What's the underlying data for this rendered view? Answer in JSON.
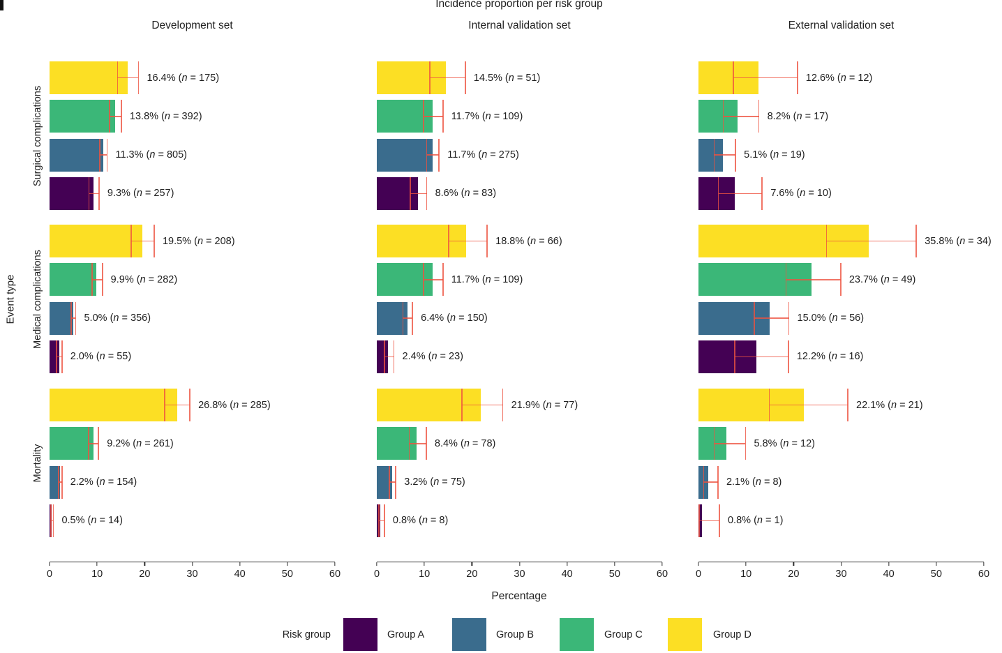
{
  "figure": {
    "title": "Incidence proportion per risk group",
    "xlabel": "Percentage",
    "ylabel": "Event type"
  },
  "legend": {
    "title": "Risk group",
    "items": [
      {
        "label": "Group A",
        "color": "#440154"
      },
      {
        "label": "Group B",
        "color": "#3A6C8D"
      },
      {
        "label": "Group C",
        "color": "#3BB778"
      },
      {
        "label": "Group D",
        "color": "#FCDF24"
      }
    ]
  },
  "chart_data": {
    "type": "bar",
    "orientation": "horizontal",
    "title": "Incidence proportion per risk group",
    "xlabel": "Percentage",
    "ylabel": "Event type",
    "xlim": [
      0,
      60
    ],
    "xticks": [
      0,
      10,
      20,
      30,
      40,
      50,
      60
    ],
    "columns": [
      "Development set",
      "Internal validation set",
      "External validation set"
    ],
    "rows": [
      "Surgical complications",
      "Medical complications",
      "Mortality"
    ],
    "group_order_top_to_bottom": [
      "Group D",
      "Group C",
      "Group B",
      "Group A"
    ],
    "colors": {
      "Group A": "#440154",
      "Group B": "#3A6C8D",
      "Group C": "#3BB778",
      "Group D": "#FCDF24"
    },
    "error_bar_color": "#ee5340",
    "panels": [
      {
        "row": "Surgical complications",
        "column": "Development set",
        "bars": [
          {
            "group": "Group D",
            "pct": "16.4",
            "n": 175,
            "ci": [
              14.3,
              18.7
            ],
            "label": "16.4% (n = 175)"
          },
          {
            "group": "Group C",
            "pct": "13.8",
            "n": 392,
            "ci": [
              12.6,
              15.1
            ],
            "label": "13.8% (n = 392)"
          },
          {
            "group": "Group B",
            "pct": "11.3",
            "n": 805,
            "ci": [
              10.6,
              12.1
            ],
            "label": "11.3% (n = 805)"
          },
          {
            "group": "Group A",
            "pct": "9.3",
            "n": 257,
            "ci": [
              8.3,
              10.4
            ],
            "label": "9.3% (n = 257)"
          }
        ]
      },
      {
        "row": "Surgical complications",
        "column": "Internal validation set",
        "bars": [
          {
            "group": "Group D",
            "pct": "14.5",
            "n": 51,
            "ci": [
              11.2,
              18.6
            ],
            "label": "14.5% (n = 51)"
          },
          {
            "group": "Group C",
            "pct": "11.7",
            "n": 109,
            "ci": [
              9.8,
              13.9
            ],
            "label": "11.7% (n = 109)"
          },
          {
            "group": "Group B",
            "pct": "11.7",
            "n": 275,
            "ci": [
              10.5,
              13.1
            ],
            "label": "11.7% (n = 275)"
          },
          {
            "group": "Group A",
            "pct": "8.6",
            "n": 83,
            "ci": [
              7.0,
              10.5
            ],
            "label": "8.6% (n = 83)"
          }
        ]
      },
      {
        "row": "Surgical complications",
        "column": "External validation set",
        "bars": [
          {
            "group": "Group D",
            "pct": "12.6",
            "n": 12,
            "ci": [
              7.3,
              20.8
            ],
            "label": "12.6% (n = 12)"
          },
          {
            "group": "Group C",
            "pct": "8.2",
            "n": 17,
            "ci": [
              5.2,
              12.7
            ],
            "label": "8.2% (n = 17)"
          },
          {
            "group": "Group B",
            "pct": "5.1",
            "n": 19,
            "ci": [
              3.3,
              7.8
            ],
            "label": "5.1% (n = 19)"
          },
          {
            "group": "Group A",
            "pct": "7.6",
            "n": 10,
            "ci": [
              4.2,
              13.4
            ],
            "label": "7.6% (n = 10)"
          }
        ]
      },
      {
        "row": "Medical complications",
        "column": "Development set",
        "bars": [
          {
            "group": "Group D",
            "pct": "19.5",
            "n": 208,
            "ci": [
              17.2,
              22.0
            ],
            "label": "19.5% (n = 208)"
          },
          {
            "group": "Group C",
            "pct": "9.9",
            "n": 282,
            "ci": [
              8.9,
              11.1
            ],
            "label": "9.9% (n = 282)"
          },
          {
            "group": "Group B",
            "pct": "5.0",
            "n": 356,
            "ci": [
              4.5,
              5.5
            ],
            "label": "5.0% (n = 356)"
          },
          {
            "group": "Group A",
            "pct": "2.0",
            "n": 55,
            "ci": [
              1.5,
              2.6
            ],
            "label": "2.0% (n = 55)"
          }
        ]
      },
      {
        "row": "Medical complications",
        "column": "Internal validation set",
        "bars": [
          {
            "group": "Group D",
            "pct": "18.8",
            "n": 66,
            "ci": [
              15.1,
              23.2
            ],
            "label": "18.8% (n = 66)"
          },
          {
            "group": "Group C",
            "pct": "11.7",
            "n": 109,
            "ci": [
              9.8,
              13.9
            ],
            "label": "11.7% (n = 109)"
          },
          {
            "group": "Group B",
            "pct": "6.4",
            "n": 150,
            "ci": [
              5.5,
              7.5
            ],
            "label": "6.4% (n = 150)"
          },
          {
            "group": "Group A",
            "pct": "2.4",
            "n": 23,
            "ci": [
              1.6,
              3.6
            ],
            "label": "2.4% (n = 23)"
          }
        ]
      },
      {
        "row": "Medical complications",
        "column": "External validation set",
        "bars": [
          {
            "group": "Group D",
            "pct": "35.8",
            "n": 34,
            "ci": [
              26.9,
              45.8
            ],
            "label": "35.8% (n = 34)"
          },
          {
            "group": "Group C",
            "pct": "23.7",
            "n": 49,
            "ci": [
              18.4,
              29.9
            ],
            "label": "23.7% (n = 49)"
          },
          {
            "group": "Group B",
            "pct": "15.0",
            "n": 56,
            "ci": [
              11.7,
              19.0
            ],
            "label": "15.0% (n = 56)"
          },
          {
            "group": "Group A",
            "pct": "12.2",
            "n": 16,
            "ci": [
              7.6,
              18.9
            ],
            "label": "12.2% (n = 16)"
          }
        ]
      },
      {
        "row": "Mortality",
        "column": "Development set",
        "bars": [
          {
            "group": "Group D",
            "pct": "26.8",
            "n": 285,
            "ci": [
              24.2,
              29.5
            ],
            "label": "26.8% (n = 285)"
          },
          {
            "group": "Group C",
            "pct": "9.2",
            "n": 261,
            "ci": [
              8.2,
              10.3
            ],
            "label": "9.2% (n = 261)"
          },
          {
            "group": "Group B",
            "pct": "2.2",
            "n": 154,
            "ci": [
              1.9,
              2.6
            ],
            "label": "2.2% (n = 154)"
          },
          {
            "group": "Group A",
            "pct": "0.5",
            "n": 14,
            "ci": [
              0.3,
              0.8
            ],
            "label": "0.5% (n = 14)"
          }
        ]
      },
      {
        "row": "Mortality",
        "column": "Internal validation set",
        "bars": [
          {
            "group": "Group D",
            "pct": "21.9",
            "n": 77,
            "ci": [
              17.9,
              26.5
            ],
            "label": "21.9% (n = 77)"
          },
          {
            "group": "Group C",
            "pct": "8.4",
            "n": 78,
            "ci": [
              6.8,
              10.4
            ],
            "label": "8.4% (n = 78)"
          },
          {
            "group": "Group B",
            "pct": "3.2",
            "n": 75,
            "ci": [
              2.6,
              4.0
            ],
            "label": "3.2% (n = 75)"
          },
          {
            "group": "Group A",
            "pct": "0.8",
            "n": 8,
            "ci": [
              0.4,
              1.6
            ],
            "label": "0.8% (n = 8)"
          }
        ]
      },
      {
        "row": "Mortality",
        "column": "External validation set",
        "bars": [
          {
            "group": "Group D",
            "pct": "22.1",
            "n": 21,
            "ci": [
              14.9,
              31.4
            ],
            "label": "22.1% (n = 21)"
          },
          {
            "group": "Group C",
            "pct": "5.8",
            "n": 12,
            "ci": [
              3.3,
              9.9
            ],
            "label": "5.8% (n = 12)"
          },
          {
            "group": "Group B",
            "pct": "2.1",
            "n": 8,
            "ci": [
              1.1,
              4.1
            ],
            "label": "2.1% (n = 8)"
          },
          {
            "group": "Group A",
            "pct": "0.8",
            "n": 1,
            "ci": [
              0.1,
              4.4
            ],
            "label": "0.8% (n = 1)"
          }
        ]
      }
    ]
  }
}
